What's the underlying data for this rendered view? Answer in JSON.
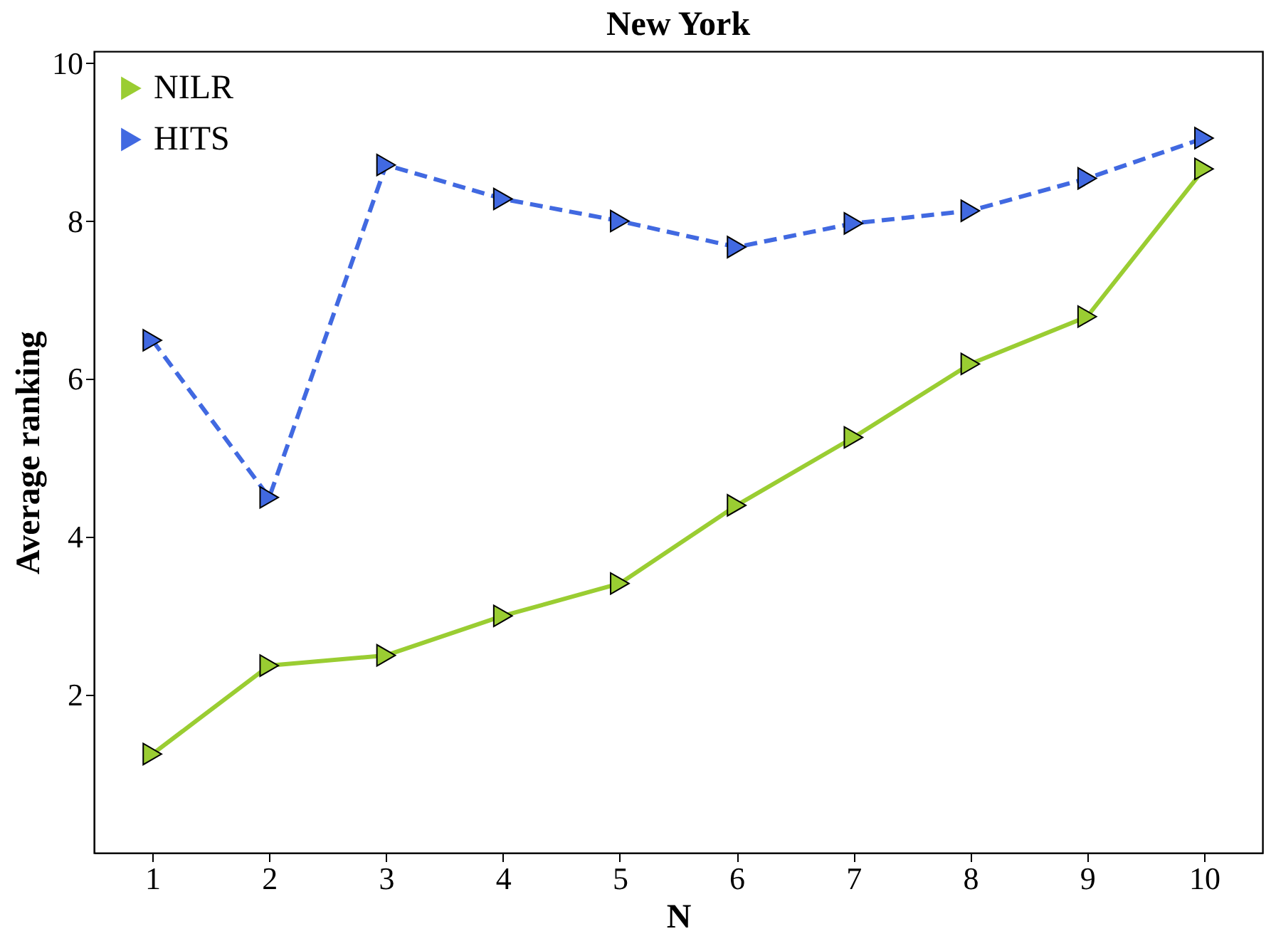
{
  "chart_data": {
    "type": "line",
    "title": "New York",
    "xlabel": "N",
    "ylabel": "Average ranking",
    "x": [
      1,
      2,
      3,
      4,
      5,
      6,
      7,
      8,
      9,
      10
    ],
    "series": [
      {
        "name": "NILR",
        "color": "#9acd32",
        "line_style": "solid",
        "values": [
          1.25,
          2.37,
          2.5,
          3.0,
          3.41,
          4.4,
          5.26,
          6.19,
          6.79,
          8.66
        ]
      },
      {
        "name": "HITS",
        "color": "#4169e1",
        "line_style": "dashed",
        "values": [
          6.49,
          4.5,
          8.71,
          8.28,
          8.0,
          7.67,
          7.97,
          8.13,
          8.54,
          9.05
        ]
      }
    ],
    "xlim": [
      0.5,
      10.5
    ],
    "xticks": [
      1,
      2,
      3,
      4,
      5,
      6,
      7,
      8,
      9,
      10
    ],
    "ylim": [
      0,
      10.15
    ],
    "yticks": [
      2,
      4,
      6,
      8,
      10
    ],
    "grid": false,
    "legend": "top left",
    "marker": "triangle"
  }
}
